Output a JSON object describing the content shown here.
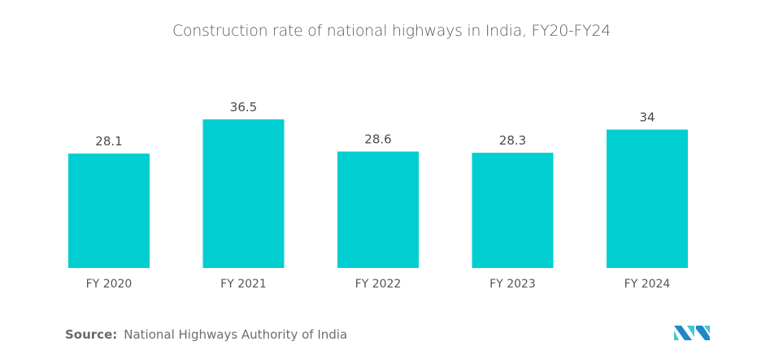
{
  "chart_data": {
    "type": "bar",
    "title": "Construction rate of national highways in India,  FY20-FY24",
    "categories": [
      "FY 2020",
      "FY 2021",
      "FY 2022",
      "FY 2023",
      "FY 2024"
    ],
    "values": [
      28.1,
      36.5,
      28.6,
      28.3,
      34
    ],
    "value_labels": [
      "28.1",
      "36.5",
      "28.6",
      "28.3",
      "34"
    ],
    "xlabel": "",
    "ylabel": "",
    "ylim": [
      0,
      36.5
    ],
    "grid": false,
    "legend": "none",
    "bar_color": "#00CED1"
  },
  "source": {
    "label": "Source:",
    "text": "National Highways Authority of India"
  },
  "logo": {
    "icon": "mordor-intelligence-logo",
    "colors": [
      "#1E88C8",
      "#3CC9D8"
    ]
  }
}
